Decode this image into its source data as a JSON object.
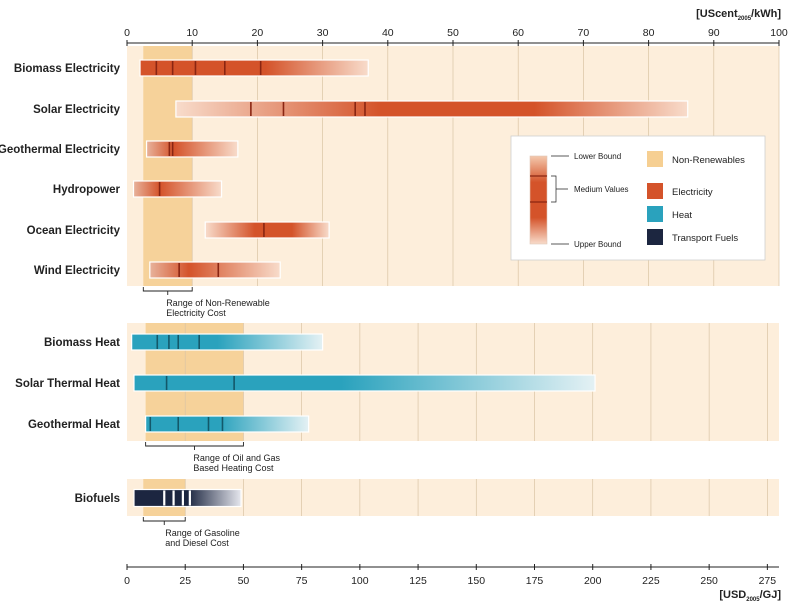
{
  "chart_data": {
    "type": "range-bar",
    "top_axis": {
      "unit_main": "[UScent",
      "unit_sub": "2005",
      "unit_tail": "/kWh]",
      "range": [
        0,
        100
      ],
      "ticks": [
        "0",
        "10",
        "20",
        "30",
        "40",
        "50",
        "60",
        "70",
        "80",
        "90",
        "100"
      ]
    },
    "bottom_axis": {
      "unit_main": "[USD",
      "unit_sub": "2005",
      "unit_tail": "/GJ]",
      "range": [
        0,
        280
      ],
      "ticks": [
        "0",
        "25",
        "50",
        "75",
        "100",
        "125",
        "150",
        "175",
        "200",
        "225",
        "250",
        "275"
      ]
    },
    "groups": [
      {
        "kind": "electricity",
        "axis": "top",
        "nonrenewable_range": [
          2.5,
          10
        ],
        "range_label": [
          "Range of Non-Renewable",
          "Electricity Cost"
        ],
        "rows": [
          {
            "label": "Biomass Electricity",
            "lower": 2,
            "upper": 37,
            "medians": [
              4.5,
              7,
              10.5,
              15,
              20.5
            ]
          },
          {
            "label": "Solar Electricity",
            "lower": 7.5,
            "upper": 86,
            "medians": [
              19,
              24,
              35,
              36.5
            ]
          },
          {
            "label": "Geothermal Electricity",
            "lower": 3,
            "upper": 17,
            "medians": [
              6.5,
              7
            ]
          },
          {
            "label": "Hydropower",
            "lower": 1,
            "upper": 14.5,
            "medians": [
              5
            ]
          },
          {
            "label": "Ocean Electricity",
            "lower": 12,
            "upper": 31,
            "medians": [
              21
            ]
          },
          {
            "label": "Wind Electricity",
            "lower": 3.5,
            "upper": 23.5,
            "medians": [
              8,
              14
            ]
          }
        ]
      },
      {
        "kind": "heat",
        "axis": "bottom",
        "nonrenewable_range": [
          8,
          50
        ],
        "range_label": [
          "Range of Oil and Gas",
          "Based Heating Cost"
        ],
        "rows": [
          {
            "label": "Biomass Heat",
            "lower": 2,
            "upper": 84,
            "medians": [
              13,
              18,
              22,
              31
            ]
          },
          {
            "label": "Solar Thermal Heat",
            "lower": 3,
            "upper": 201,
            "medians": [
              17,
              46
            ]
          },
          {
            "label": "Geothermal Heat",
            "lower": 8,
            "upper": 78,
            "medians": [
              10,
              22,
              35,
              41
            ]
          }
        ]
      },
      {
        "kind": "fuel",
        "axis": "bottom",
        "nonrenewable_range": [
          7,
          25
        ],
        "range_label": [
          "Range of Gasoline",
          "and Diesel Cost"
        ],
        "rows": [
          {
            "label": "Biofuels",
            "lower": 3,
            "upper": 49,
            "medians": [
              16,
              20,
              24,
              27
            ]
          }
        ]
      }
    ],
    "legend": {
      "bounds": {
        "lower": "Lower Bound",
        "medium": "Medium Values",
        "upper": "Upper Bound"
      },
      "items": [
        {
          "label": "Non-Renewables",
          "color": "#f6cf92"
        },
        {
          "label": "Electricity",
          "color": "#d4532a"
        },
        {
          "label": "Heat",
          "color": "#2aa2bd"
        },
        {
          "label": "Transport Fuels",
          "color": "#1c2640"
        }
      ]
    },
    "colors": {
      "panel": "#fdeedb",
      "grid": "#d9c4a4",
      "nonrenewable_band": "#f6d29a",
      "electricity": "#d4532a",
      "electricity_median": "#8a2512",
      "heat": "#2aa2bd",
      "heat_median": "#13586a",
      "fuel": "#1c2640",
      "fuel_median": "#ffffff"
    }
  }
}
